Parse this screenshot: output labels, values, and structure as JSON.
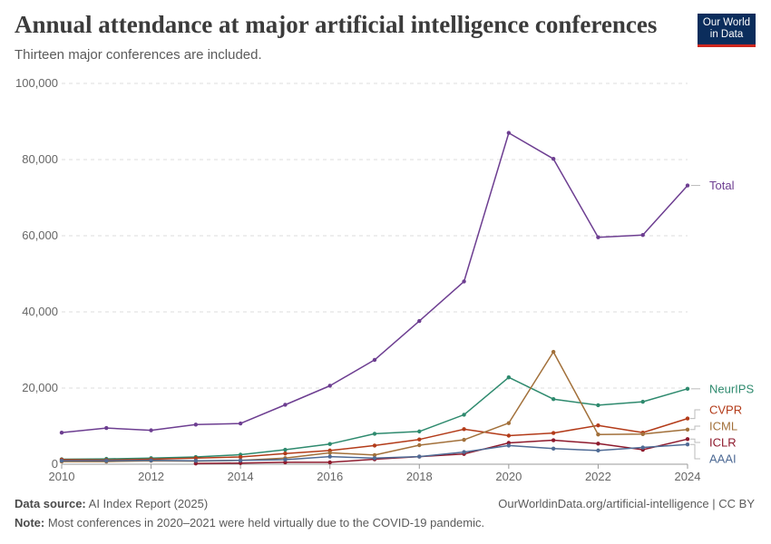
{
  "header": {
    "title": "Annual attendance at major artificial intelligence conferences",
    "subtitle": "Thirteen major conferences are included.",
    "logo_line1": "Our World",
    "logo_line2": "in Data"
  },
  "footer": {
    "source_label": "Data source:",
    "source_text": "AI Index Report (2025)",
    "url_text": "OurWorldinData.org/artificial-intelligence | CC BY",
    "note_label": "Note:",
    "note_text": "Most conferences in 2020–2021 were held virtually due to the COVID-19 pandemic."
  },
  "chart_data": {
    "type": "line",
    "x": [
      2010,
      2011,
      2012,
      2013,
      2014,
      2015,
      2016,
      2017,
      2018,
      2019,
      2020,
      2021,
      2022,
      2023,
      2024
    ],
    "xlim": [
      2010,
      2024
    ],
    "ylim": [
      0,
      100000
    ],
    "x_ticks": [
      2010,
      2012,
      2014,
      2016,
      2018,
      2020,
      2022,
      2024
    ],
    "y_ticks": [
      0,
      20000,
      40000,
      60000,
      80000,
      100000
    ],
    "y_tick_labels": [
      "0",
      "20,000",
      "40,000",
      "60,000",
      "80,000",
      "100,000"
    ],
    "grid": "horizontal dashed",
    "legend": "right, labels at line ends",
    "series": [
      {
        "name": "Total",
        "color": "#6d3e91",
        "values": [
          8300,
          9500,
          8900,
          10400,
          10700,
          15600,
          20600,
          27400,
          37600,
          48000,
          87000,
          80200,
          59600,
          60200,
          73200
        ]
      },
      {
        "name": "NeurIPS",
        "color": "#2e8a6e",
        "values": [
          1300,
          1400,
          1600,
          1900,
          2500,
          3800,
          5300,
          8000,
          8600,
          13000,
          22800,
          17100,
          15500,
          16400,
          19800
        ]
      },
      {
        "name": "CVPR",
        "color": "#b33b19",
        "values": [
          1200,
          1100,
          1300,
          1600,
          1900,
          2800,
          3600,
          4900,
          6500,
          9200,
          7500,
          8200,
          10200,
          8300,
          12000
        ]
      },
      {
        "name": "ICML",
        "color": "#a2703a",
        "values": [
          700,
          700,
          900,
          800,
          1000,
          1600,
          3000,
          2400,
          5000,
          6400,
          10800,
          29500,
          7800,
          7900,
          9100
        ]
      },
      {
        "name": "ICLR",
        "color": "#8e1a2d",
        "values": [
          null,
          null,
          null,
          200,
          300,
          500,
          500,
          1300,
          2000,
          2700,
          5600,
          6300,
          5400,
          3800,
          6600
        ]
      },
      {
        "name": "AAAI",
        "color": "#4f6b95",
        "values": [
          900,
          900,
          1000,
          900,
          1000,
          1200,
          2000,
          1600,
          2000,
          3200,
          4900,
          4100,
          3600,
          4400,
          5200
        ]
      }
    ]
  }
}
